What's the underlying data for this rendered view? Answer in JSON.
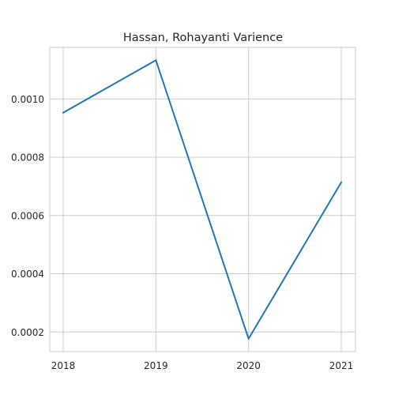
{
  "chart_data": {
    "type": "line",
    "title": "Hassan, Rohayanti Varience",
    "xlabel": "",
    "ylabel": "",
    "x": [
      "2018",
      "2019",
      "2020",
      "2021"
    ],
    "series": [
      {
        "values": [
          0.000953,
          0.001133,
          0.000177,
          0.000714
        ],
        "color": "#1f77b4"
      }
    ],
    "ylim": [
      0.000133,
      0.001177
    ],
    "yticks": [
      {
        "value": 0.0002,
        "label": "0.0002"
      },
      {
        "value": 0.0004,
        "label": "0.0004"
      },
      {
        "value": 0.0006,
        "label": "0.0006"
      },
      {
        "value": 0.0008,
        "label": "0.0008"
      },
      {
        "value": 0.001,
        "label": "0.0010"
      }
    ],
    "grid": true,
    "style": {
      "grid_color": "#cccccc",
      "axis_color": "#cccccc",
      "text_color": "#262626"
    }
  }
}
